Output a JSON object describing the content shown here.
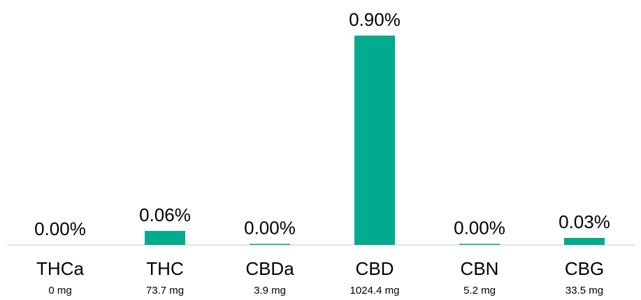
{
  "chart_data": {
    "type": "bar",
    "categories": [
      "THCa",
      "THC",
      "CBDa",
      "CBD",
      "CBN",
      "CBG"
    ],
    "values": [
      0.0,
      0.06,
      0.003,
      0.9,
      0.004,
      0.03
    ],
    "value_labels": [
      "0.00%",
      "0.06%",
      "0.00%",
      "0.90%",
      "0.00%",
      "0.03%"
    ],
    "sub_labels": [
      "0 mg",
      "73.7 mg",
      "3.9 mg",
      "1024.4 mg",
      "5.2 mg",
      "33.5 mg"
    ],
    "ylim": [
      0,
      0.9
    ],
    "grid": false,
    "bar_color": "#00ab8e",
    "axis_color": "#d9d9d9"
  }
}
